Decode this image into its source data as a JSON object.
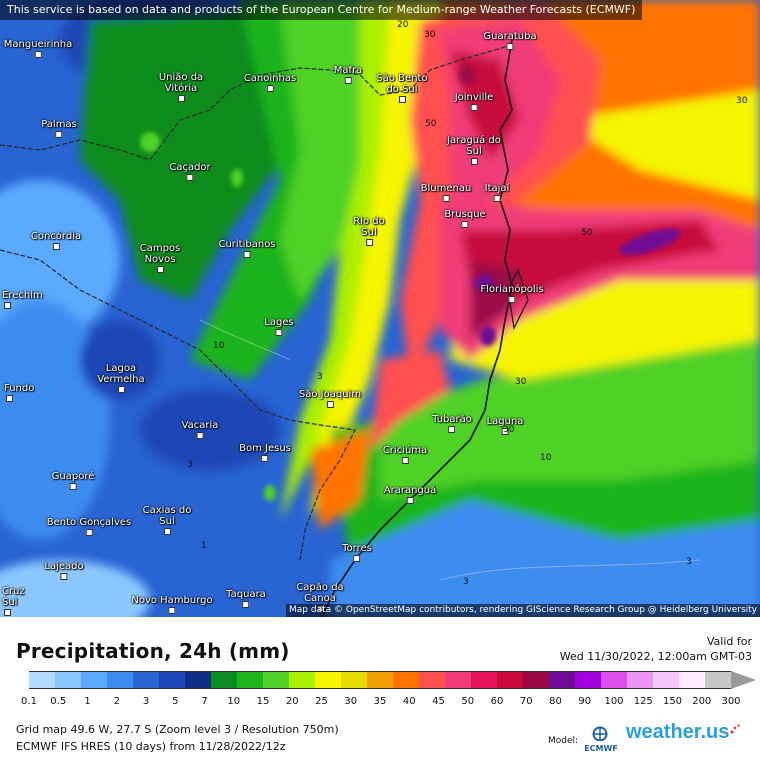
{
  "map": {
    "notice": "This service is based on data and products of the European Centre for Medium-range Weather Forecasts (ECMWF)",
    "attribution": "Map data © OpenStreetMap contributors, rendering GIScience Research Group @ Heidelberg University",
    "cities": [
      {
        "name": "Mangueirinha"
      },
      {
        "name": "União da Vitória"
      },
      {
        "name": "Canoinhas"
      },
      {
        "name": "Mafra"
      },
      {
        "name": "São Bento do Sul"
      },
      {
        "name": "Guaratuba"
      },
      {
        "name": "Joinville"
      },
      {
        "name": "Palmas"
      },
      {
        "name": "Jaraguá do Sul"
      },
      {
        "name": "Caçador"
      },
      {
        "name": "Blumenau"
      },
      {
        "name": "Itajaí"
      },
      {
        "name": "Brusque"
      },
      {
        "name": "Concórdia"
      },
      {
        "name": "Campos Novos"
      },
      {
        "name": "Curitibanos"
      },
      {
        "name": "Rio do Sul"
      },
      {
        "name": "Erechim"
      },
      {
        "name": "Florianópolis"
      },
      {
        "name": "Lages"
      },
      {
        "name": "Lagoa Vermelha"
      },
      {
        "name": "Fundo"
      },
      {
        "name": "São Joaquim"
      },
      {
        "name": "Tubarão"
      },
      {
        "name": "Laguna"
      },
      {
        "name": "Vacaria"
      },
      {
        "name": "Bom Jesus"
      },
      {
        "name": "Criciúma"
      },
      {
        "name": "Guaporé"
      },
      {
        "name": "Araranguá"
      },
      {
        "name": "Bento Gonçalves"
      },
      {
        "name": "Caxias do Sul"
      },
      {
        "name": "Lajeado"
      },
      {
        "name": "Torres"
      },
      {
        "name": "Cruz Sul"
      },
      {
        "name": "Novo Hamburgo"
      },
      {
        "name": "Taquara"
      },
      {
        "name": "Capão da Canoa"
      }
    ],
    "contour_labels": [
      "20",
      "30",
      "30",
      "50",
      "50",
      "10",
      "30",
      "30",
      "10",
      "3",
      "3",
      "1",
      "1",
      "3",
      "3"
    ]
  },
  "legend": {
    "title": "Precipitation, 24h (mm)",
    "valid_label": "Valid for",
    "valid_date": "Wed 11/30/2022, 12:00am GMT-03",
    "ticks": [
      "0.1",
      "0.5",
      "1",
      "2",
      "3",
      "5",
      "7",
      "10",
      "15",
      "20",
      "25",
      "30",
      "35",
      "40",
      "45",
      "50",
      "60",
      "70",
      "80",
      "90",
      "100",
      "125",
      "150",
      "200",
      "300"
    ],
    "colors": [
      "#b4dcff",
      "#8cc8ff",
      "#5aaaff",
      "#3c8cf0",
      "#2864d2",
      "#1e46b4",
      "#0f2d82",
      "#0a8c1e",
      "#1eb41e",
      "#50d228",
      "#aaf000",
      "#f5f500",
      "#e6dc00",
      "#f0a000",
      "#ff7300",
      "#ff5050",
      "#f03c78",
      "#e6145a",
      "#c80a3c",
      "#9b0a46",
      "#6e0a96",
      "#a000dc",
      "#dc50f0",
      "#eb96f5",
      "#f5c8fa",
      "#ffebff",
      "#c8c8c8"
    ],
    "grid_info": "Grid map 49.6 W, 27.7 S (Zoom level 3 / Resolution 750m)",
    "model_info": "ECMWF IFS HRES (10 days) from 11/28/2022/12z",
    "brand_label": "Model:",
    "brand_ecmwf": "ECMWF",
    "brand_logo_main": "weather.",
    "brand_logo_tld": "us"
  }
}
